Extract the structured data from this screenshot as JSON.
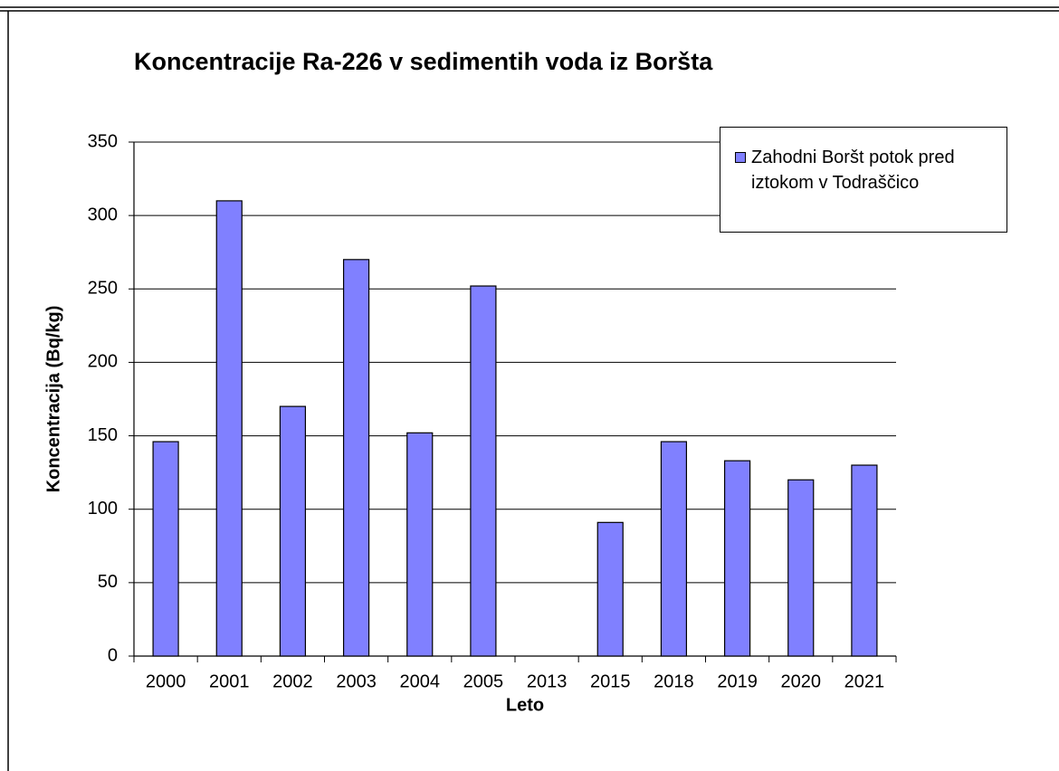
{
  "chart_data": {
    "type": "bar",
    "title": "Koncentracije Ra-226 v sedimentih voda iz Boršta",
    "x_label": "Leto",
    "y_label": "Koncentracija (Bq/kg)",
    "categories": [
      "2000",
      "2001",
      "2002",
      "2003",
      "2004",
      "2005",
      "2013",
      "2015",
      "2018",
      "2019",
      "2020",
      "2021"
    ],
    "series": [
      {
        "name": "Zahodni Boršt potok pred iztokom v Todraščico",
        "color": "#8080ff",
        "values": [
          146,
          310,
          170,
          270,
          152,
          252,
          null,
          91,
          146,
          133,
          120,
          130
        ]
      }
    ],
    "ylim": [
      0,
      350
    ],
    "yticks": [
      0,
      50,
      100,
      150,
      200,
      250,
      300,
      350
    ],
    "grid": true,
    "legend": "top-right"
  }
}
